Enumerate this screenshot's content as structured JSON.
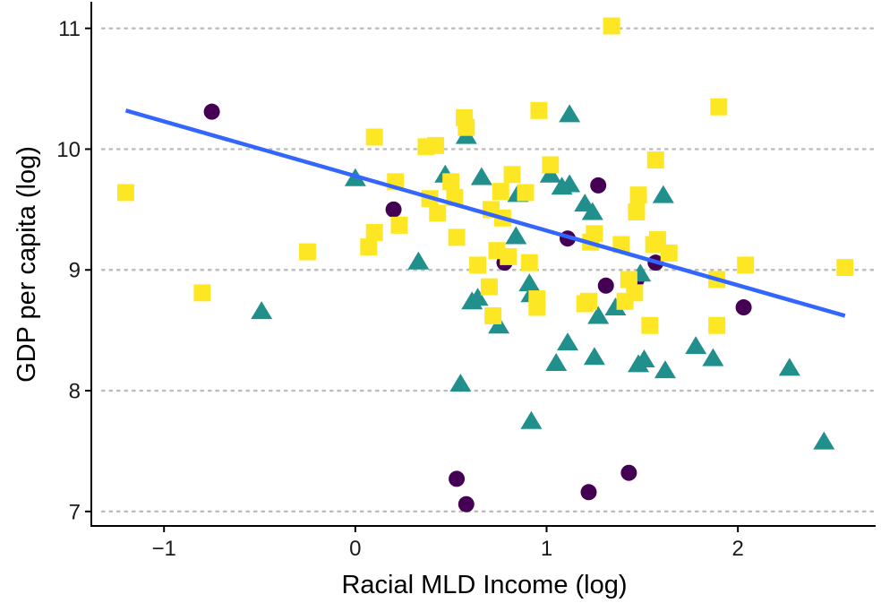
{
  "colors": {
    "circle": "#440154",
    "triangle": "#21908C",
    "square": "#FDE725",
    "fit_line": "#3366FF",
    "grid": "#bdbdbd",
    "axis": "#000000"
  },
  "chart_data": {
    "type": "scatter",
    "xlabel": "Racial MLD Income (log)",
    "ylabel": "GDP per capita (log)",
    "xlim": [
      -1.38,
      2.72
    ],
    "ylim": [
      6.88,
      11.22
    ],
    "x_ticks": [
      -1,
      0,
      1,
      2
    ],
    "x_tick_labels": [
      "−1",
      "0",
      "1",
      "2"
    ],
    "y_ticks": [
      7,
      8,
      9,
      10,
      11
    ],
    "y_tick_labels": [
      "7",
      "8",
      "9",
      "10",
      "11"
    ],
    "grid": "horizontal dotted at y ticks",
    "legend": "none",
    "fit_line": {
      "x": [
        -1.2,
        2.56
      ],
      "y": [
        10.32,
        8.62
      ]
    },
    "series": [
      {
        "marker": "circle",
        "points": [
          [
            -0.75,
            10.31
          ],
          [
            0.2,
            9.5
          ],
          [
            0.78,
            9.06
          ],
          [
            1.11,
            9.26
          ],
          [
            1.27,
            9.7
          ],
          [
            1.31,
            8.87
          ],
          [
            1.47,
            8.92
          ],
          [
            1.57,
            9.06
          ],
          [
            2.03,
            8.69
          ],
          [
            0.53,
            7.27
          ],
          [
            0.58,
            7.06
          ],
          [
            1.22,
            7.16
          ],
          [
            1.43,
            7.32
          ]
        ]
      },
      {
        "marker": "triangle",
        "points": [
          [
            0.0,
            9.76
          ],
          [
            -0.49,
            8.66
          ],
          [
            0.33,
            9.07
          ],
          [
            0.47,
            9.79
          ],
          [
            0.58,
            10.11
          ],
          [
            0.66,
            9.77
          ],
          [
            0.64,
            8.77
          ],
          [
            0.61,
            8.74
          ],
          [
            0.75,
            8.54
          ],
          [
            0.85,
            9.63
          ],
          [
            0.84,
            9.28
          ],
          [
            0.91,
            8.89
          ],
          [
            0.92,
            8.8
          ],
          [
            0.92,
            7.75
          ],
          [
            0.55,
            8.06
          ],
          [
            1.02,
            9.79
          ],
          [
            1.08,
            9.69
          ],
          [
            1.12,
            9.71
          ],
          [
            1.12,
            10.29
          ],
          [
            1.11,
            8.4
          ],
          [
            1.05,
            8.23
          ],
          [
            1.2,
            9.55
          ],
          [
            1.24,
            9.48
          ],
          [
            1.25,
            8.28
          ],
          [
            1.27,
            8.62
          ],
          [
            1.36,
            8.69
          ],
          [
            1.48,
            8.22
          ],
          [
            1.51,
            8.26
          ],
          [
            1.49,
            8.97
          ],
          [
            1.61,
            9.62
          ],
          [
            1.62,
            8.17
          ],
          [
            1.78,
            8.37
          ],
          [
            1.87,
            8.27
          ],
          [
            2.27,
            8.19
          ],
          [
            2.45,
            7.58
          ]
        ]
      },
      {
        "marker": "square",
        "points": [
          [
            -1.2,
            9.64
          ],
          [
            -0.8,
            8.81
          ],
          [
            -0.25,
            9.15
          ],
          [
            0.07,
            9.19
          ],
          [
            0.1,
            9.31
          ],
          [
            0.1,
            10.1
          ],
          [
            0.21,
            9.73
          ],
          [
            0.23,
            9.37
          ],
          [
            0.37,
            10.02
          ],
          [
            0.39,
            9.59
          ],
          [
            0.42,
            10.03
          ],
          [
            0.43,
            9.47
          ],
          [
            0.5,
            9.73
          ],
          [
            0.52,
            9.6
          ],
          [
            0.53,
            9.27
          ],
          [
            0.57,
            10.26
          ],
          [
            0.58,
            10.18
          ],
          [
            0.64,
            9.04
          ],
          [
            0.7,
            8.86
          ],
          [
            0.71,
            9.5
          ],
          [
            0.72,
            8.62
          ],
          [
            0.74,
            9.16
          ],
          [
            0.76,
            9.65
          ],
          [
            0.77,
            9.43
          ],
          [
            0.8,
            9.11
          ],
          [
            0.82,
            9.79
          ],
          [
            0.89,
            9.64
          ],
          [
            0.91,
            9.06
          ],
          [
            0.95,
            8.69
          ],
          [
            0.95,
            8.76
          ],
          [
            0.96,
            10.32
          ],
          [
            1.02,
            9.87
          ],
          [
            1.2,
            8.72
          ],
          [
            1.22,
            8.74
          ],
          [
            1.23,
            9.23
          ],
          [
            1.25,
            9.3
          ],
          [
            1.34,
            11.02
          ],
          [
            1.39,
            9.21
          ],
          [
            1.41,
            8.74
          ],
          [
            1.43,
            8.92
          ],
          [
            1.46,
            8.81
          ],
          [
            1.47,
            9.48
          ],
          [
            1.48,
            9.62
          ],
          [
            1.54,
            8.54
          ],
          [
            1.56,
            9.21
          ],
          [
            1.57,
            9.91
          ],
          [
            1.58,
            9.25
          ],
          [
            1.64,
            9.14
          ],
          [
            1.89,
            8.92
          ],
          [
            1.89,
            8.54
          ],
          [
            1.9,
            10.35
          ],
          [
            2.04,
            9.04
          ],
          [
            2.56,
            9.02
          ]
        ]
      }
    ]
  }
}
